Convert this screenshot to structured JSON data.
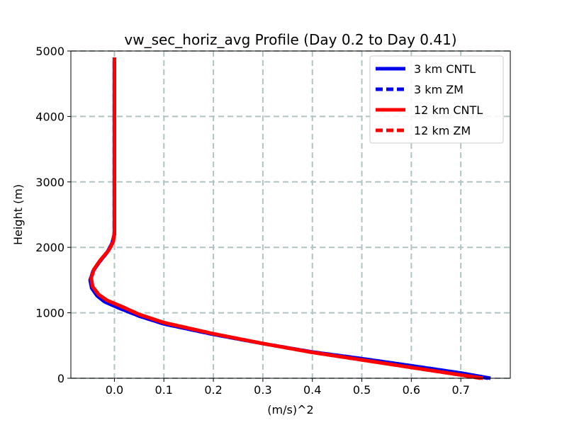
{
  "chart_data": {
    "type": "line",
    "title": "vw_sec_horiz_avg Profile (Day 0.2 to Day 0.41)",
    "xlabel": "(m/s)^2",
    "ylabel": "Height (m)",
    "xlim": [
      -0.088,
      0.8
    ],
    "ylim": [
      0,
      5000
    ],
    "xticks": [
      0.0,
      0.1,
      0.2,
      0.3,
      0.4,
      0.5,
      0.6,
      0.7
    ],
    "xtick_labels": [
      "0.0",
      "0.1",
      "0.2",
      "0.3",
      "0.4",
      "0.5",
      "0.6",
      "0.7"
    ],
    "yticks": [
      0,
      1000,
      2000,
      3000,
      4000,
      5000
    ],
    "ytick_labels": [
      "0",
      "1000",
      "2000",
      "3000",
      "4000",
      "5000"
    ],
    "grid": true,
    "legend_position": "top-right",
    "colors": {
      "blue": "#0000ee",
      "red": "#ff0000",
      "grid": "#b0c4c4"
    },
    "series": [
      {
        "name": "3 km CNTL",
        "color": "#0000ee",
        "dash": "solid",
        "x": [
          0.76,
          0.7,
          0.6,
          0.5,
          0.4,
          0.3,
          0.2,
          0.1,
          0.05,
          0.01,
          -0.02,
          -0.035,
          -0.046,
          -0.049,
          -0.043,
          -0.03,
          -0.015,
          -0.005,
          0.0,
          0.0,
          0.0,
          0.0,
          0.0
        ],
        "y": [
          0,
          80,
          190,
          300,
          400,
          530,
          670,
          830,
          950,
          1070,
          1170,
          1260,
          1380,
          1500,
          1640,
          1780,
          1920,
          2060,
          2200,
          2400,
          3000,
          4000,
          4900
        ]
      },
      {
        "name": "3 km ZM",
        "color": "#0000ee",
        "dash": "dashed",
        "x": [
          0.755,
          0.7,
          0.6,
          0.5,
          0.4,
          0.3,
          0.2,
          0.1,
          0.05,
          0.01,
          -0.02,
          -0.035,
          -0.046,
          -0.049,
          -0.043,
          -0.03,
          -0.015,
          -0.005,
          0.0,
          0.0,
          0.0,
          0.0,
          0.0
        ],
        "y": [
          0,
          80,
          190,
          300,
          400,
          530,
          670,
          830,
          950,
          1070,
          1170,
          1260,
          1380,
          1500,
          1640,
          1780,
          1920,
          2060,
          2200,
          2400,
          3000,
          4000,
          4900
        ]
      },
      {
        "name": "12 km CNTL",
        "color": "#ff0000",
        "dash": "solid",
        "x": [
          0.745,
          0.7,
          0.6,
          0.5,
          0.4,
          0.3,
          0.2,
          0.1,
          0.05,
          0.015,
          -0.015,
          -0.032,
          -0.044,
          -0.047,
          -0.041,
          -0.028,
          -0.012,
          -0.002,
          0.0,
          0.0,
          0.0,
          0.0,
          0.0
        ],
        "y": [
          0,
          50,
          165,
          280,
          395,
          530,
          680,
          850,
          975,
          1095,
          1190,
          1280,
          1400,
          1530,
          1670,
          1810,
          1950,
          2090,
          2230,
          2400,
          3000,
          4000,
          4900
        ]
      },
      {
        "name": "12 km ZM",
        "color": "#ff0000",
        "dash": "dashed",
        "x": [
          0.74,
          0.7,
          0.6,
          0.5,
          0.4,
          0.3,
          0.2,
          0.1,
          0.05,
          0.015,
          -0.015,
          -0.032,
          -0.044,
          -0.047,
          -0.041,
          -0.028,
          -0.012,
          -0.002,
          0.0,
          0.0,
          0.0,
          0.0,
          0.0
        ],
        "y": [
          0,
          50,
          165,
          280,
          395,
          530,
          680,
          850,
          975,
          1095,
          1190,
          1280,
          1400,
          1530,
          1670,
          1810,
          1950,
          2090,
          2230,
          2400,
          3000,
          4000,
          4900
        ]
      }
    ]
  }
}
